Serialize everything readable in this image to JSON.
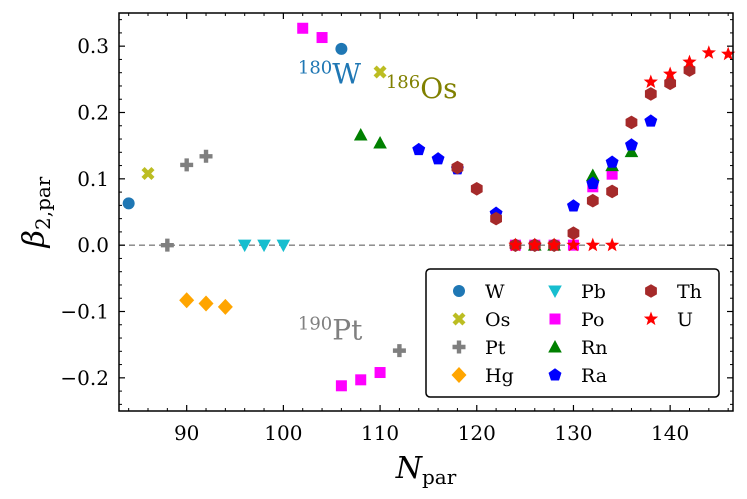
{
  "chart_data": {
    "type": "scatter",
    "xlabel": {
      "main": "N",
      "sub": "par"
    },
    "ylabel": {
      "main": "β",
      "sub": "2,par"
    },
    "xlim": [
      83,
      146.5
    ],
    "ylim": [
      -0.25,
      0.35
    ],
    "xticks": [
      90,
      100,
      110,
      120,
      130,
      140
    ],
    "xtick_labels": [
      "90",
      "100",
      "110",
      "120",
      "130",
      "140"
    ],
    "yticks": [
      -0.2,
      -0.1,
      0.0,
      0.1,
      0.2,
      0.3
    ],
    "ytick_labels": [
      "−0.2",
      "−0.1",
      "0.0",
      "0.1",
      "0.2",
      "0.3"
    ],
    "reference_line": {
      "y": 0.0,
      "style": "dashed",
      "color": "#808080"
    },
    "grid": false,
    "legend": {
      "position": "lower-right",
      "columns": 3
    },
    "series": [
      {
        "name": "W",
        "marker": "circle",
        "color": "#1f77b4",
        "points": [
          [
            84,
            0.063
          ],
          [
            106,
            0.296
          ]
        ]
      },
      {
        "name": "Os",
        "marker": "x",
        "color": "#bcbd22",
        "points": [
          [
            86,
            0.108
          ],
          [
            110,
            0.261
          ]
        ]
      },
      {
        "name": "Pt",
        "marker": "plus",
        "color": "#7f7f7f",
        "points": [
          [
            88,
            0.0
          ],
          [
            90,
            0.121
          ],
          [
            92,
            0.134
          ],
          [
            112,
            -0.159
          ]
        ]
      },
      {
        "name": "Hg",
        "marker": "diamond",
        "color": "#ffa500",
        "points": [
          [
            90,
            -0.083
          ],
          [
            92,
            -0.088
          ],
          [
            94,
            -0.093
          ]
        ]
      },
      {
        "name": "Pb",
        "marker": "triangle-down",
        "color": "#17becf",
        "points": [
          [
            96,
            0.0
          ],
          [
            98,
            0.0
          ],
          [
            100,
            0.0
          ]
        ]
      },
      {
        "name": "Po",
        "marker": "square",
        "color": "#ff00ff",
        "points": [
          [
            102,
            0.327
          ],
          [
            104,
            0.313
          ],
          [
            106,
            -0.212
          ],
          [
            108,
            -0.203
          ],
          [
            110,
            -0.192
          ],
          [
            124,
            0.0
          ],
          [
            126,
            0.0
          ],
          [
            128,
            0.0
          ],
          [
            130,
            0.0
          ],
          [
            132,
            0.088
          ],
          [
            134,
            0.107
          ]
        ]
      },
      {
        "name": "Rn",
        "marker": "triangle-up",
        "color": "#008000",
        "points": [
          [
            108,
            0.166
          ],
          [
            110,
            0.154
          ],
          [
            126,
            0.0
          ],
          [
            128,
            0.0
          ],
          [
            132,
            0.105
          ],
          [
            134,
            0.12
          ],
          [
            136,
            0.141
          ]
        ]
      },
      {
        "name": "Ra",
        "marker": "pentagon",
        "color": "#0000ff",
        "points": [
          [
            114,
            0.144
          ],
          [
            116,
            0.13
          ],
          [
            118,
            0.115
          ],
          [
            122,
            0.048
          ],
          [
            126,
            0.0
          ],
          [
            130,
            0.059
          ],
          [
            132,
            0.093
          ],
          [
            134,
            0.125
          ],
          [
            136,
            0.151
          ],
          [
            138,
            0.187
          ]
        ]
      },
      {
        "name": "Th",
        "marker": "hexagon",
        "color": "#a52a2a",
        "points": [
          [
            118,
            0.117
          ],
          [
            120,
            0.085
          ],
          [
            122,
            0.04
          ],
          [
            124,
            0.0
          ],
          [
            126,
            0.0
          ],
          [
            128,
            0.0
          ],
          [
            130,
            0.018
          ],
          [
            132,
            0.067
          ],
          [
            134,
            0.081
          ],
          [
            136,
            0.185
          ],
          [
            138,
            0.228
          ],
          [
            140,
            0.244
          ],
          [
            142,
            0.264
          ]
        ]
      },
      {
        "name": "U",
        "marker": "star",
        "color": "#ff0000",
        "points": [
          [
            124,
            0.0
          ],
          [
            126,
            0.0
          ],
          [
            128,
            0.0
          ],
          [
            130,
            0.0
          ],
          [
            132,
            0.0
          ],
          [
            134,
            0.0
          ],
          [
            138,
            0.246
          ],
          [
            140,
            0.258
          ],
          [
            142,
            0.276
          ],
          [
            144,
            0.29
          ],
          [
            146,
            0.288
          ]
        ]
      }
    ],
    "annotations": [
      {
        "id": "w180",
        "mass": "180",
        "element": "W",
        "color": "#1f77b4",
        "x": 101.5,
        "y": 0.244
      },
      {
        "id": "os186",
        "mass": "186",
        "element": "Os",
        "color": "#808000",
        "x": 110.6,
        "y": 0.222
      },
      {
        "id": "pt190",
        "mass": "190",
        "element": "Pt",
        "color": "#808080",
        "x": 101.5,
        "y": -0.142
      }
    ]
  }
}
